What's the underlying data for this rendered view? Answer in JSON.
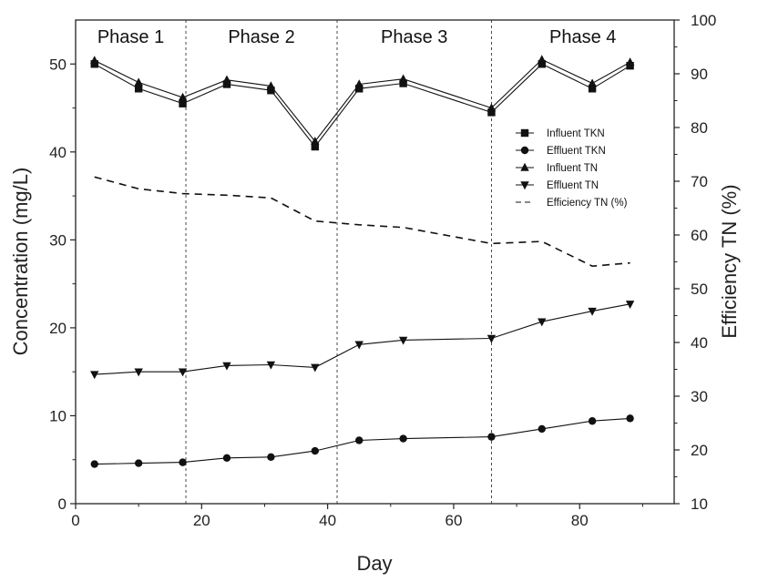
{
  "chart_data": {
    "type": "line",
    "xlabel": "Day",
    "ylabel": "Concentration (mg/L)",
    "y2label": "Efficiency TN (%)",
    "xlim": [
      0,
      95
    ],
    "ylim": [
      0,
      55
    ],
    "y2lim": [
      10,
      100
    ],
    "x_ticks": [
      "0",
      "20",
      "40",
      "60",
      "80"
    ],
    "y_ticks": [
      "0",
      "10",
      "20",
      "30",
      "40",
      "50"
    ],
    "y2_ticks": [
      "10",
      "20",
      "30",
      "40",
      "50",
      "60",
      "70",
      "80",
      "90",
      "100"
    ],
    "phases": [
      {
        "label": "Phase 1",
        "start": 0,
        "end": 17.5
      },
      {
        "label": "Phase 2",
        "start": 17.5,
        "end": 41.5
      },
      {
        "label": "Phase 3",
        "start": 41.5,
        "end": 66
      },
      {
        "label": "Phase 4",
        "start": 66,
        "end": 95
      }
    ],
    "legend_position": "right, upper-middle",
    "series": [
      {
        "name": "Influent TKN",
        "axis": "left",
        "marker": "square",
        "x": [
          3,
          10,
          17,
          24,
          31,
          38,
          45,
          52,
          66,
          74,
          82,
          88
        ],
        "y": [
          50.0,
          47.2,
          45.5,
          47.7,
          47.0,
          40.6,
          47.2,
          47.8,
          44.5,
          50.0,
          47.2,
          49.8
        ]
      },
      {
        "name": "Effluent TKN",
        "axis": "left",
        "marker": "circle",
        "x": [
          3,
          10,
          17,
          24,
          31,
          38,
          45,
          52,
          66,
          74,
          82,
          88
        ],
        "y": [
          4.5,
          4.6,
          4.7,
          5.2,
          5.3,
          6.0,
          7.2,
          7.4,
          7.6,
          8.5,
          9.4,
          9.7
        ]
      },
      {
        "name": "Influent TN",
        "axis": "left",
        "marker": "triangle-up",
        "x": [
          3,
          10,
          17,
          24,
          31,
          38,
          45,
          52,
          66,
          74,
          82,
          88
        ],
        "y": [
          50.4,
          47.9,
          46.2,
          48.2,
          47.5,
          41.2,
          47.7,
          48.3,
          45.0,
          50.5,
          47.8,
          50.2
        ]
      },
      {
        "name": "Effluent TN",
        "axis": "left",
        "marker": "triangle-down",
        "x": [
          3,
          10,
          17,
          24,
          31,
          38,
          45,
          52,
          66,
          74,
          82,
          88
        ],
        "y": [
          14.7,
          15.0,
          15.0,
          15.7,
          15.8,
          15.5,
          18.1,
          18.6,
          18.8,
          20.7,
          21.9,
          22.7
        ]
      },
      {
        "name": "Efficiency TN (%)",
        "axis": "right",
        "marker": "none",
        "dash": "8,6",
        "x": [
          3,
          10,
          17,
          24,
          31,
          38,
          45,
          52,
          66,
          74,
          82,
          88
        ],
        "y": [
          70.8,
          68.6,
          67.7,
          67.4,
          66.9,
          62.6,
          61.9,
          61.4,
          58.4,
          58.8,
          54.2,
          54.8
        ]
      }
    ]
  }
}
